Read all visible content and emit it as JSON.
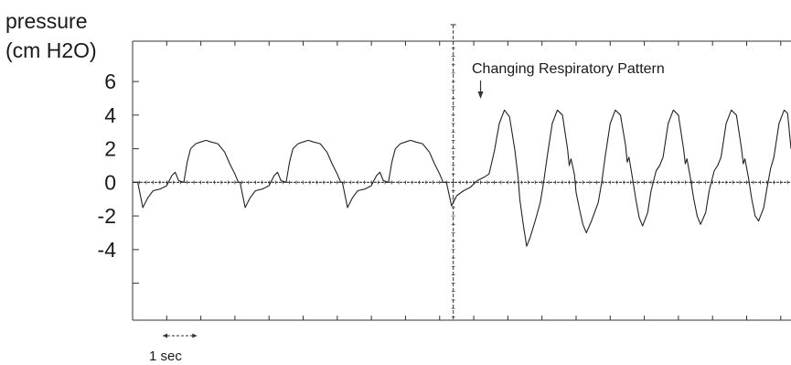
{
  "chart_data": {
    "type": "line",
    "ylabel_line1": "pressure",
    "ylabel_line2": "(cm H2O)",
    "yticks": [
      "6",
      "4",
      "2",
      "0",
      "-2",
      "-4"
    ],
    "ytick_values": [
      6,
      4,
      2,
      0,
      -2,
      -4
    ],
    "ylim": [
      -8.2,
      8.4
    ],
    "x_unit": "sec",
    "xlim": [
      0,
      19.3
    ],
    "annotation": "Changing Respiratory Pattern",
    "annotation_time": 10.2,
    "marker_time": 9.4,
    "scale_bar_label": "1 sec",
    "grid": false,
    "series": [
      {
        "points": [
          [
            0.0,
            0.0
          ],
          [
            0.15,
            0.0
          ],
          [
            0.3,
            -1.5
          ],
          [
            0.45,
            -0.9
          ],
          [
            0.6,
            -0.5
          ],
          [
            0.8,
            -0.4
          ],
          [
            1.0,
            -0.2
          ],
          [
            1.15,
            0.4
          ],
          [
            1.25,
            0.6
          ],
          [
            1.35,
            0.1
          ],
          [
            1.5,
            0.0
          ],
          [
            1.6,
            1.2
          ],
          [
            1.7,
            2.0
          ],
          [
            1.85,
            2.3
          ],
          [
            2.0,
            2.4
          ],
          [
            2.15,
            2.5
          ],
          [
            2.3,
            2.4
          ],
          [
            2.5,
            2.3
          ],
          [
            2.7,
            1.8
          ],
          [
            2.85,
            1.1
          ],
          [
            3.0,
            0.5
          ],
          [
            3.1,
            0.0
          ],
          [
            3.15,
            0.0
          ],
          [
            3.3,
            -1.5
          ],
          [
            3.45,
            -0.9
          ],
          [
            3.6,
            -0.5
          ],
          [
            3.8,
            -0.4
          ],
          [
            4.0,
            -0.2
          ],
          [
            4.15,
            0.4
          ],
          [
            4.25,
            0.6
          ],
          [
            4.35,
            0.1
          ],
          [
            4.5,
            0.0
          ],
          [
            4.6,
            1.2
          ],
          [
            4.7,
            2.0
          ],
          [
            4.85,
            2.3
          ],
          [
            5.0,
            2.4
          ],
          [
            5.15,
            2.5
          ],
          [
            5.3,
            2.4
          ],
          [
            5.5,
            2.3
          ],
          [
            5.7,
            1.8
          ],
          [
            5.85,
            1.1
          ],
          [
            6.0,
            0.5
          ],
          [
            6.1,
            0.0
          ],
          [
            6.15,
            0.0
          ],
          [
            6.3,
            -1.5
          ],
          [
            6.45,
            -0.9
          ],
          [
            6.6,
            -0.5
          ],
          [
            6.8,
            -0.4
          ],
          [
            7.0,
            -0.2
          ],
          [
            7.15,
            0.4
          ],
          [
            7.25,
            0.6
          ],
          [
            7.35,
            0.1
          ],
          [
            7.5,
            0.0
          ],
          [
            7.6,
            1.2
          ],
          [
            7.7,
            2.0
          ],
          [
            7.85,
            2.3
          ],
          [
            8.0,
            2.4
          ],
          [
            8.15,
            2.5
          ],
          [
            8.3,
            2.4
          ],
          [
            8.5,
            2.3
          ],
          [
            8.7,
            1.8
          ],
          [
            8.85,
            1.1
          ],
          [
            9.0,
            0.5
          ],
          [
            9.1,
            0.0
          ],
          [
            9.2,
            0.0
          ],
          [
            9.35,
            -1.4
          ],
          [
            9.5,
            -0.8
          ],
          [
            9.7,
            -0.5
          ],
          [
            9.9,
            -0.3
          ],
          [
            10.1,
            0.1
          ],
          [
            10.3,
            0.3
          ],
          [
            10.45,
            0.5
          ],
          [
            10.6,
            1.8
          ],
          [
            10.75,
            3.5
          ],
          [
            10.9,
            4.3
          ],
          [
            11.05,
            3.9
          ],
          [
            11.2,
            2.0
          ],
          [
            11.3,
            0.3
          ],
          [
            11.35,
            -1.0
          ],
          [
            11.45,
            -2.5
          ],
          [
            11.55,
            -3.8
          ],
          [
            11.65,
            -3.3
          ],
          [
            11.8,
            -2.3
          ],
          [
            11.95,
            -1.2
          ],
          [
            12.05,
            0.0
          ],
          [
            12.15,
            1.5
          ],
          [
            12.3,
            3.5
          ],
          [
            12.45,
            4.3
          ],
          [
            12.6,
            4.0
          ],
          [
            12.75,
            2.0
          ],
          [
            12.8,
            1.0
          ],
          [
            12.85,
            1.4
          ],
          [
            12.95,
            0.5
          ],
          [
            13.0,
            -0.6
          ],
          [
            13.1,
            -1.6
          ],
          [
            13.2,
            -2.5
          ],
          [
            13.3,
            -3.0
          ],
          [
            13.45,
            -2.3
          ],
          [
            13.65,
            -1.2
          ],
          [
            13.75,
            0.0
          ],
          [
            13.85,
            1.5
          ],
          [
            14.0,
            3.5
          ],
          [
            14.15,
            4.3
          ],
          [
            14.3,
            4.0
          ],
          [
            14.45,
            2.2
          ],
          [
            14.5,
            1.2
          ],
          [
            14.55,
            1.5
          ],
          [
            14.65,
            0.3
          ],
          [
            14.75,
            -1.0
          ],
          [
            14.85,
            -2.1
          ],
          [
            14.95,
            -2.6
          ],
          [
            15.1,
            -1.8
          ],
          [
            15.2,
            -0.5
          ],
          [
            15.35,
            0.7
          ],
          [
            15.45,
            1.0
          ],
          [
            15.55,
            1.5
          ],
          [
            15.7,
            3.5
          ],
          [
            15.85,
            4.3
          ],
          [
            16.0,
            4.0
          ],
          [
            16.15,
            2.0
          ],
          [
            16.2,
            1.1
          ],
          [
            16.25,
            1.4
          ],
          [
            16.35,
            0.3
          ],
          [
            16.45,
            -1.0
          ],
          [
            16.55,
            -2.0
          ],
          [
            16.65,
            -2.5
          ],
          [
            16.8,
            -1.8
          ],
          [
            16.9,
            -0.5
          ],
          [
            17.05,
            0.7
          ],
          [
            17.15,
            1.0
          ],
          [
            17.25,
            1.5
          ],
          [
            17.4,
            3.5
          ],
          [
            17.55,
            4.3
          ],
          [
            17.7,
            4.0
          ],
          [
            17.85,
            2.0
          ],
          [
            17.9,
            1.1
          ],
          [
            17.95,
            1.4
          ],
          [
            18.05,
            0.3
          ],
          [
            18.15,
            -1.0
          ],
          [
            18.25,
            -2.0
          ],
          [
            18.35,
            -2.3
          ],
          [
            18.5,
            -1.5
          ],
          [
            18.6,
            -0.3
          ],
          [
            18.7,
            0.8
          ],
          [
            18.8,
            1.5
          ],
          [
            18.95,
            3.5
          ],
          [
            19.1,
            4.3
          ],
          [
            19.2,
            4.1
          ],
          [
            19.3,
            2.0
          ]
        ]
      }
    ]
  }
}
